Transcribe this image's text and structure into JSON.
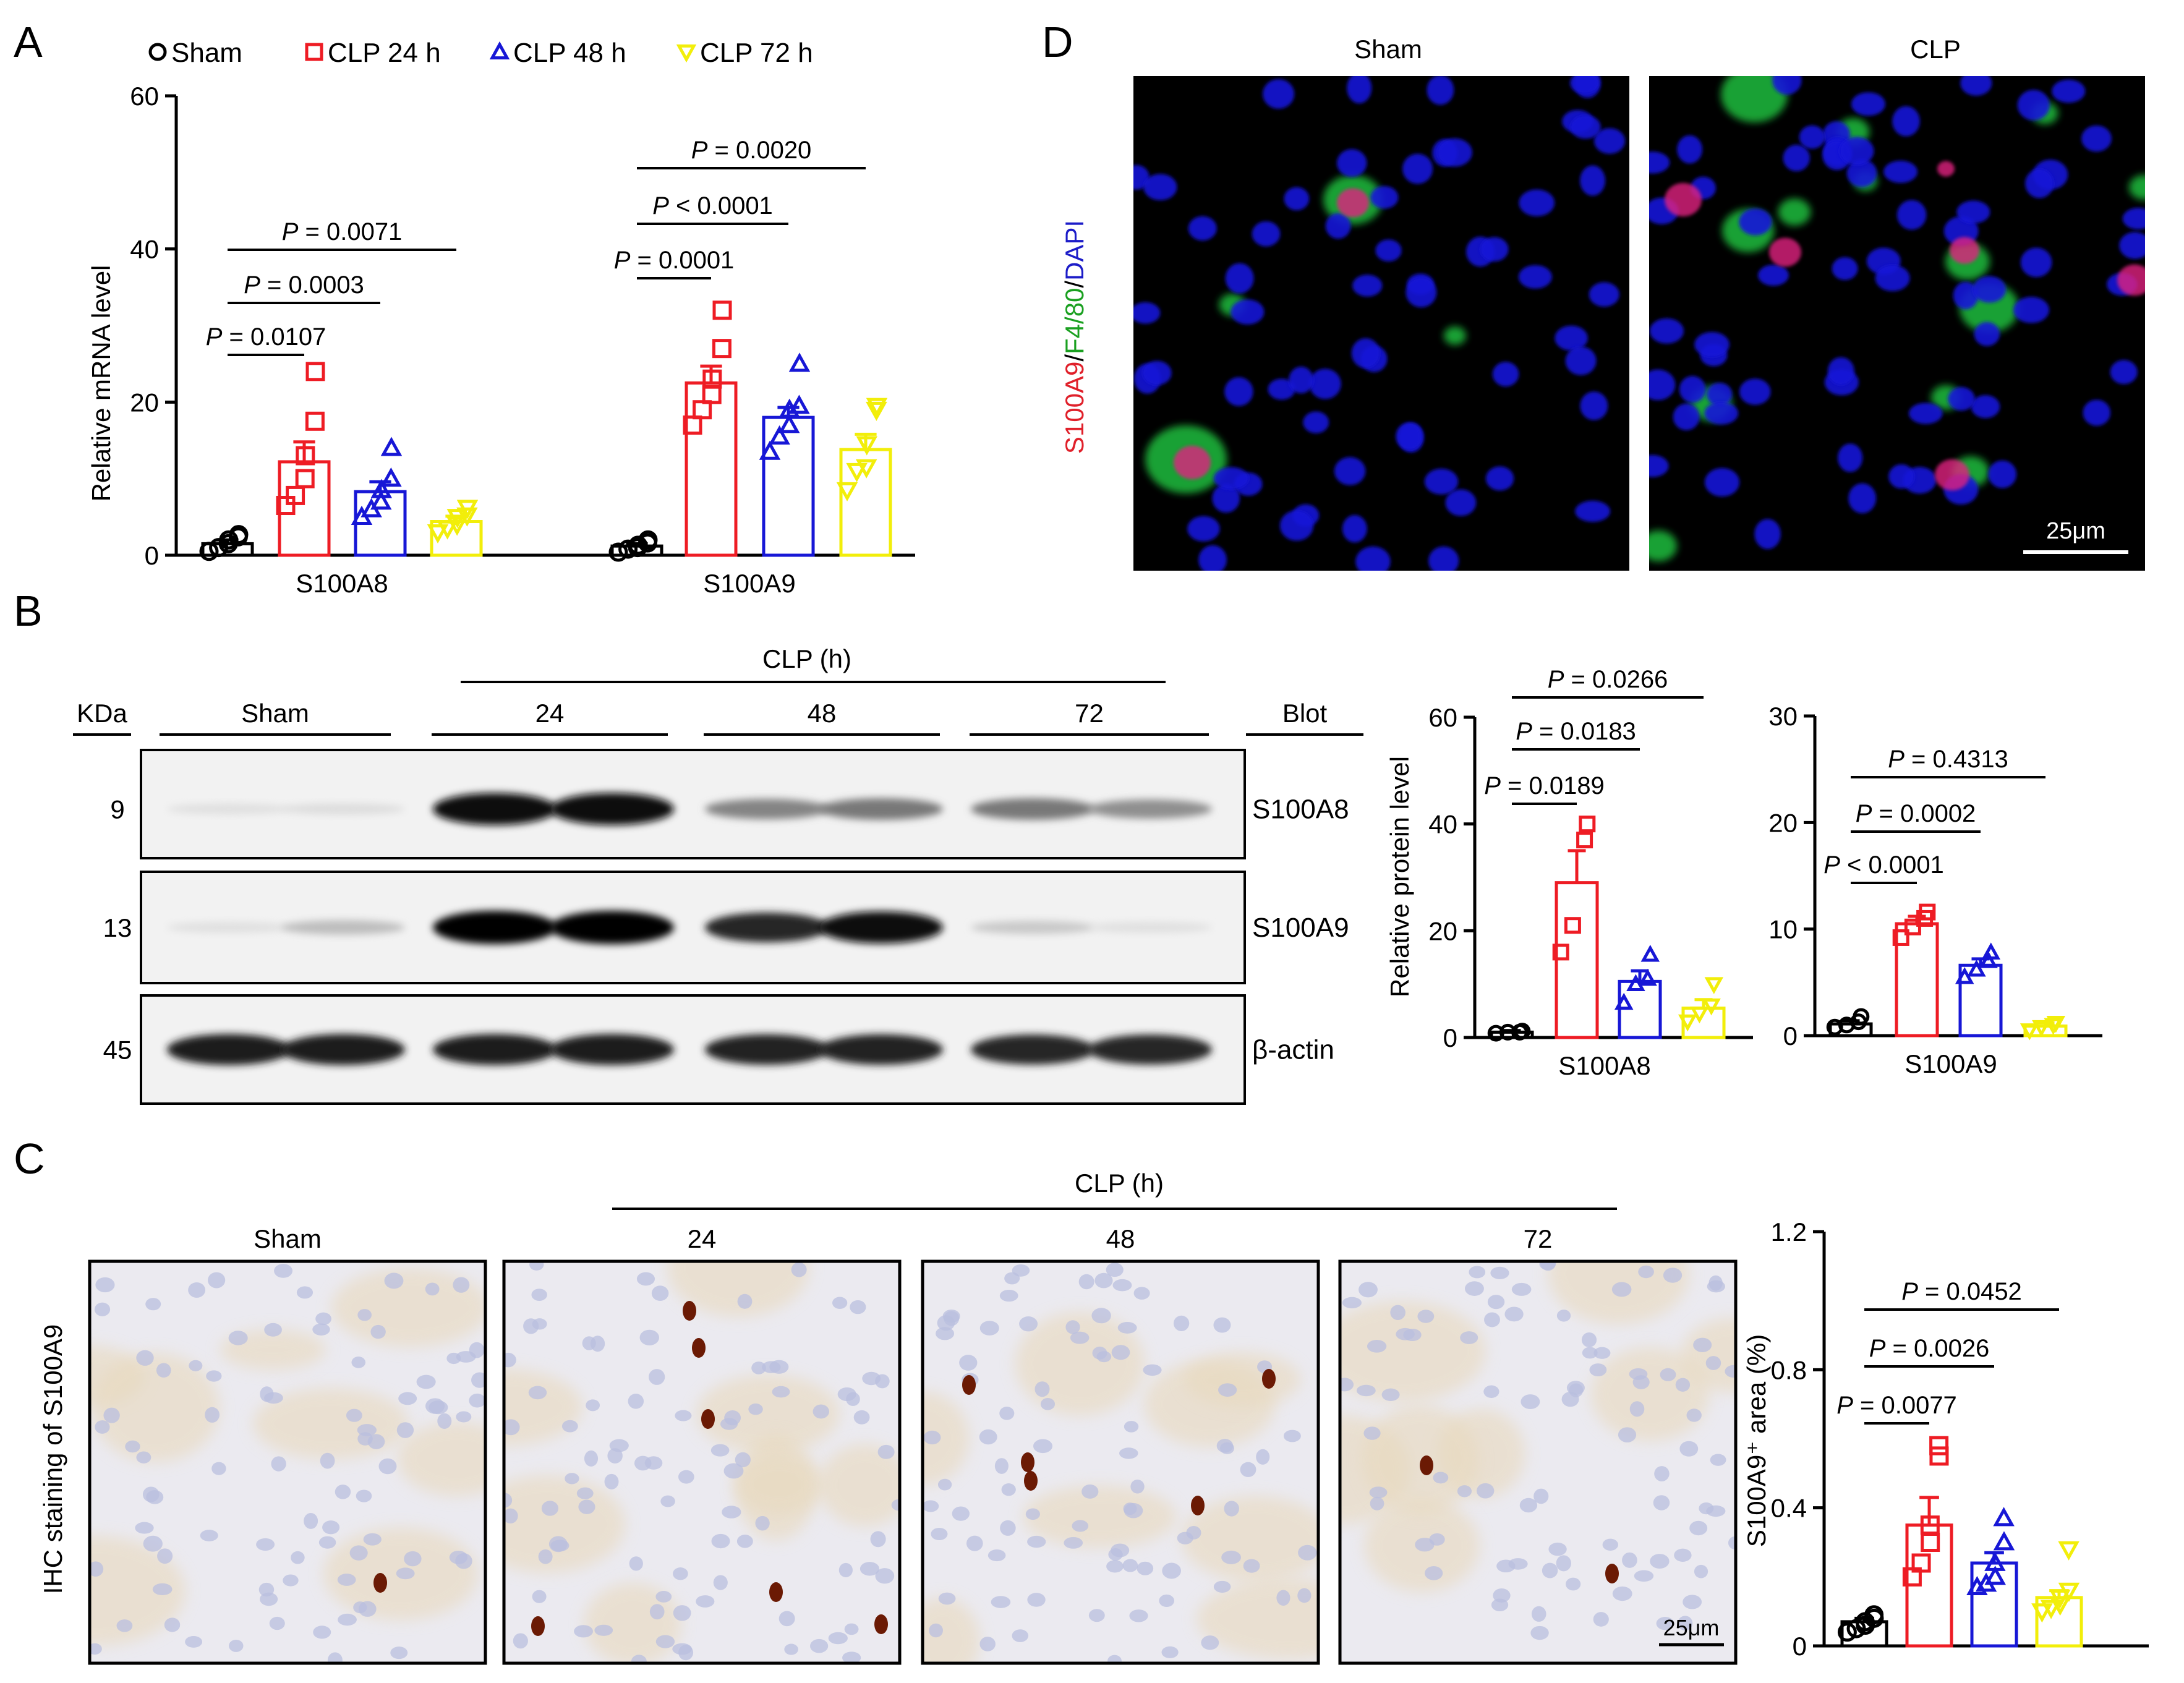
{
  "panels": {
    "A": {
      "letter": "A",
      "legend": [
        "Sham",
        "CLP 24 h",
        "CLP 48 h",
        "CLP 72 h"
      ],
      "chart_data": {
        "type": "bar",
        "ylabel": "Relative mRNA level",
        "ylim": [
          0,
          60
        ],
        "yticks": [
          "0",
          "20",
          "40",
          "60"
        ],
        "categories": [
          "S100A8",
          "S100A9"
        ],
        "series": [
          {
            "name": "Sham",
            "values": [
              1.5,
              1.2
            ],
            "sem": [
              0.5,
              0.3
            ],
            "points": [
              [
                0.5,
                1.0,
                1.5,
                2.0,
                2.4,
                2.7
              ],
              [
                0.4,
                0.8,
                1.0,
                1.3,
                1.6,
                2.0
              ]
            ]
          },
          {
            "name": "CLP 24 h",
            "values": [
              12.2,
              22.5
            ],
            "sem": [
              2.6,
              2.2
            ],
            "points": [
              [
                6.5,
                7.8,
                10.0,
                13.0,
                17.5,
                24.0
              ],
              [
                17.0,
                19.0,
                21.0,
                23.0,
                27.0,
                32.0
              ]
            ]
          },
          {
            "name": "CLP 48 h",
            "values": [
              8.3,
              18.0
            ],
            "sem": [
              1.3,
              1.3
            ],
            "points": [
              [
                5.0,
                6.0,
                7.0,
                8.5,
                10.0,
                14.0
              ],
              [
                13.5,
                15.5,
                17.0,
                19.0,
                19.5,
                25.0
              ]
            ]
          },
          {
            "name": "CLP 72 h",
            "values": [
              4.4,
              13.8
            ],
            "sem": [
              0.7,
              2.0
            ],
            "points": [
              [
                3.0,
                3.5,
                4.0,
                5.0,
                5.2,
                6.2
              ],
              [
                8.5,
                11.0,
                11.5,
                14.5,
                19.0,
                19.5
              ]
            ]
          }
        ],
        "comparisons": [
          {
            "category": 0,
            "from": 0,
            "to": 1,
            "label": "P = 0.0107"
          },
          {
            "category": 0,
            "from": 0,
            "to": 2,
            "label": "P = 0.0003"
          },
          {
            "category": 0,
            "from": 0,
            "to": 3,
            "label": "P = 0.0071"
          },
          {
            "category": 1,
            "from": 0,
            "to": 1,
            "label": "P = 0.0001"
          },
          {
            "category": 1,
            "from": 0,
            "to": 2,
            "label": "P < 0.0001"
          },
          {
            "category": 1,
            "from": 0,
            "to": 3,
            "label": "P = 0.0020"
          }
        ]
      }
    },
    "B": {
      "letter": "B",
      "clp_header": "CLP (h)",
      "kda_label": "KDa",
      "blot_label": "Blot",
      "groups": [
        "Sham",
        "24",
        "48",
        "72"
      ],
      "bands": [
        {
          "kda": "9",
          "name": "S100A8",
          "intensity": [
            0.05,
            0.06,
            0.95,
            0.95,
            0.45,
            0.5,
            0.5,
            0.4
          ]
        },
        {
          "kda": "13",
          "name": "S100A9",
          "intensity": [
            0.05,
            0.2,
            1.0,
            1.0,
            0.85,
            0.95,
            0.15,
            0.05
          ]
        },
        {
          "kda": "45",
          "name": "β-actin",
          "intensity": [
            0.9,
            0.9,
            0.9,
            0.9,
            0.88,
            0.88,
            0.86,
            0.86
          ]
        }
      ],
      "charts": [
        {
          "type": "bar",
          "ylabel": "Relative protein level",
          "ylim": [
            0,
            60
          ],
          "yticks": [
            "0",
            "20",
            "40",
            "60"
          ],
          "xlabel": "S100A8",
          "series": [
            {
              "name": "Sham",
              "value": 1.0,
              "sem": 0.3,
              "points": [
                0.8,
                1.0,
                1.0,
                1.2
              ]
            },
            {
              "name": "CLP 24 h",
              "value": 29.0,
              "sem": 6.0,
              "points": [
                16.0,
                21.0,
                37.0,
                40.0
              ]
            },
            {
              "name": "CLP 48 h",
              "value": 10.5,
              "sem": 2.0,
              "points": [
                6.5,
                10.0,
                11.0,
                15.5
              ]
            },
            {
              "name": "CLP 72 h",
              "value": 5.5,
              "sem": 1.6,
              "points": [
                3.0,
                4.5,
                6.0,
                10.0
              ]
            }
          ],
          "comparisons": [
            {
              "from": 0,
              "to": 1,
              "label": "P = 0.0189"
            },
            {
              "from": 0,
              "to": 2,
              "label": "P = 0.0183"
            },
            {
              "from": 0,
              "to": 3,
              "label": "P = 0.0266"
            }
          ]
        },
        {
          "type": "bar",
          "ylabel": "",
          "ylim": [
            0,
            30
          ],
          "yticks": [
            "0",
            "10",
            "20",
            "30"
          ],
          "xlabel": "S100A9",
          "series": [
            {
              "name": "Sham",
              "value": 1.1,
              "sem": 0.3,
              "points": [
                0.8,
                1.0,
                1.3,
                1.8
              ]
            },
            {
              "name": "CLP 24 h",
              "value": 10.5,
              "sem": 0.7,
              "points": [
                9.2,
                10.2,
                11.0,
                11.6
              ]
            },
            {
              "name": "CLP 48 h",
              "value": 6.6,
              "sem": 0.6,
              "points": [
                5.5,
                6.2,
                7.0,
                7.8
              ]
            },
            {
              "name": "CLP 72 h",
              "value": 0.9,
              "sem": 0.3,
              "points": [
                0.5,
                0.8,
                1.0,
                1.2
              ]
            }
          ],
          "comparisons": [
            {
              "from": 0,
              "to": 1,
              "label": "P < 0.0001"
            },
            {
              "from": 0,
              "to": 2,
              "label": "P = 0.0002"
            },
            {
              "from": 0,
              "to": 3,
              "label": "P = 0.4313"
            }
          ]
        }
      ]
    },
    "C": {
      "letter": "C",
      "clp_header": "CLP (h)",
      "side_label": "IHC staining of S100A9",
      "image_labels": [
        "Sham",
        "24",
        "48",
        "72"
      ],
      "scale_bar": "25μm",
      "chart_data": {
        "type": "bar",
        "ylabel": "S100A9⁺ area (%)",
        "ylim": [
          0,
          1.2
        ],
        "yticks": [
          "0",
          "0.4",
          "0.8",
          "1.2"
        ],
        "series": [
          {
            "name": "Sham",
            "value": 0.07,
            "sem": 0.01,
            "points": [
              0.04,
              0.05,
              0.06,
              0.07,
              0.08,
              0.09
            ]
          },
          {
            "name": "CLP 24 h",
            "value": 0.35,
            "sem": 0.08,
            "points": [
              0.2,
              0.24,
              0.3,
              0.35,
              0.55,
              0.58
            ]
          },
          {
            "name": "CLP 48 h",
            "value": 0.24,
            "sem": 0.03,
            "points": [
              0.17,
              0.18,
              0.2,
              0.24,
              0.3,
              0.37
            ]
          },
          {
            "name": "CLP 72 h",
            "value": 0.14,
            "sem": 0.02,
            "points": [
              0.1,
              0.11,
              0.12,
              0.14,
              0.16,
              0.28
            ]
          }
        ],
        "comparisons": [
          {
            "from": 0,
            "to": 1,
            "label": "P = 0.0077"
          },
          {
            "from": 0,
            "to": 2,
            "label": "P = 0.0026"
          },
          {
            "from": 0,
            "to": 3,
            "label": "P = 0.0452"
          }
        ]
      }
    },
    "D": {
      "letter": "D",
      "image_labels": [
        "Sham",
        "CLP"
      ],
      "side_label_parts": [
        {
          "text": "S100A9",
          "color": "#e0202a"
        },
        {
          "text": "/",
          "color": "#000000"
        },
        {
          "text": "F4/80",
          "color": "#1aa020"
        },
        {
          "text": "/",
          "color": "#000000"
        },
        {
          "text": "DAPI",
          "color": "#1c1cc8"
        }
      ],
      "scale_bar": "25μm"
    }
  },
  "colors": {
    "Sham": "#000000",
    "CLP 24 h": "#ee1c24",
    "CLP 48 h": "#1717d6",
    "CLP 72 h": "#f2ee0a"
  },
  "markers": {
    "Sham": "circle",
    "CLP 24 h": "square",
    "CLP 48 h": "triangle",
    "CLP 72 h": "triangle-down"
  }
}
